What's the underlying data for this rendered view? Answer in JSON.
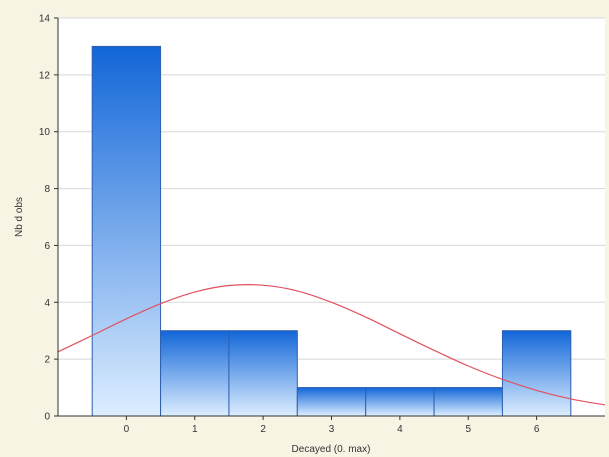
{
  "chart_data": {
    "type": "bar",
    "categories": [
      "0",
      "1",
      "2",
      "3",
      "4",
      "5",
      "6"
    ],
    "values": [
      13,
      3,
      3,
      1,
      1,
      1,
      3
    ],
    "xlabel": "Decayed (0. max)",
    "ylabel": "Nb d obs",
    "ylim": [
      0,
      14
    ],
    "yticks": [
      "0",
      "2",
      "4",
      "6",
      "8",
      "10",
      "12",
      "14"
    ],
    "xlim": [
      -1,
      7
    ],
    "grid": true,
    "fit_curve": {
      "type": "normal",
      "x": [
        -1,
        -0.5,
        0,
        0.5,
        1,
        1.5,
        2,
        2.5,
        3,
        3.5,
        4,
        4.5,
        5,
        5.5,
        6,
        6.5,
        7
      ],
      "y": [
        2.26,
        2.83,
        3.42,
        3.95,
        4.36,
        4.59,
        4.6,
        4.4,
        4.0,
        3.48,
        2.89,
        2.31,
        1.76,
        1.29,
        0.9,
        0.6,
        0.39
      ]
    },
    "colors": {
      "bar_top": "#1266d8",
      "bar_bottom": "#ddeeff",
      "bar_stroke": "#2f5fb0",
      "curve": "#e05060",
      "grid": "#d8d8d8",
      "axis": "#333333",
      "plot_bg": "#ffffff",
      "page_bg": "#f7f4e4"
    }
  }
}
